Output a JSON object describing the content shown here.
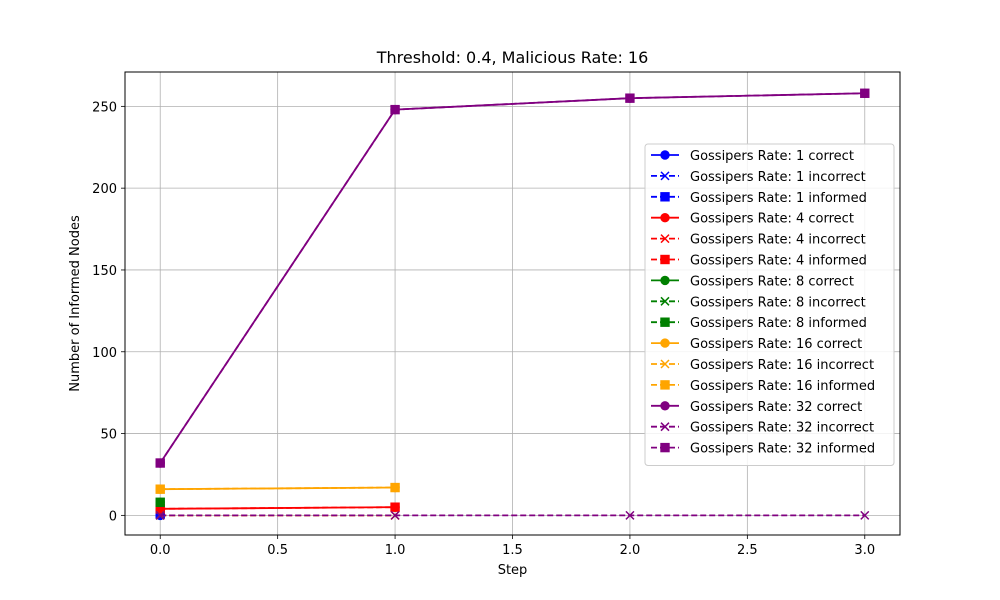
{
  "chart_data": {
    "type": "line",
    "title": "Threshold: 0.4, Malicious Rate: 16",
    "xlabel": "Step",
    "ylabel": "Number of Informed Nodes",
    "xlim": [
      -0.15,
      3.15
    ],
    "ylim": [
      -12,
      271
    ],
    "xticks": [
      "0.0",
      "0.5",
      "1.0",
      "1.5",
      "2.0",
      "2.5",
      "3.0"
    ],
    "yticks": [
      "0",
      "50",
      "100",
      "150",
      "200",
      "250"
    ],
    "grid": true,
    "legend_position": "right",
    "series": [
      {
        "name": "Gossipers Rate: 1 correct",
        "color": "#0000ff",
        "marker": "circle",
        "dash": "solid",
        "x": [
          0
        ],
        "y": [
          0
        ]
      },
      {
        "name": "Gossipers Rate: 1 incorrect",
        "color": "#0000ff",
        "marker": "x",
        "dash": "dashed",
        "x": [
          0
        ],
        "y": [
          0
        ]
      },
      {
        "name": "Gossipers Rate: 1 informed",
        "color": "#0000ff",
        "marker": "square",
        "dash": "dashed",
        "x": [
          0
        ],
        "y": [
          1
        ]
      },
      {
        "name": "Gossipers Rate: 4 correct",
        "color": "#ff0000",
        "marker": "circle",
        "dash": "solid",
        "x": [
          0,
          1
        ],
        "y": [
          4,
          5
        ]
      },
      {
        "name": "Gossipers Rate: 4 incorrect",
        "color": "#ff0000",
        "marker": "x",
        "dash": "dashed",
        "x": [
          0,
          1
        ],
        "y": [
          0,
          0
        ]
      },
      {
        "name": "Gossipers Rate: 4 informed",
        "color": "#ff0000",
        "marker": "square",
        "dash": "dashed",
        "x": [
          0,
          1
        ],
        "y": [
          4,
          5
        ]
      },
      {
        "name": "Gossipers Rate: 8 correct",
        "color": "#008000",
        "marker": "circle",
        "dash": "solid",
        "x": [
          0
        ],
        "y": [
          8
        ]
      },
      {
        "name": "Gossipers Rate: 8 incorrect",
        "color": "#008000",
        "marker": "x",
        "dash": "dashed",
        "x": [
          0
        ],
        "y": [
          0
        ]
      },
      {
        "name": "Gossipers Rate: 8 informed",
        "color": "#008000",
        "marker": "square",
        "dash": "dashed",
        "x": [
          0
        ],
        "y": [
          8
        ]
      },
      {
        "name": "Gossipers Rate: 16 correct",
        "color": "#ffa500",
        "marker": "circle",
        "dash": "solid",
        "x": [
          0,
          1
        ],
        "y": [
          16,
          17
        ]
      },
      {
        "name": "Gossipers Rate: 16 incorrect",
        "color": "#ffa500",
        "marker": "x",
        "dash": "dashed",
        "x": [
          0,
          1
        ],
        "y": [
          0,
          0
        ]
      },
      {
        "name": "Gossipers Rate: 16 informed",
        "color": "#ffa500",
        "marker": "square",
        "dash": "dashed",
        "x": [
          0,
          1
        ],
        "y": [
          16,
          17
        ]
      },
      {
        "name": "Gossipers Rate: 32 correct",
        "color": "#800080",
        "marker": "circle",
        "dash": "solid",
        "x": [
          0,
          1,
          2,
          3
        ],
        "y": [
          32,
          248,
          255,
          258
        ]
      },
      {
        "name": "Gossipers Rate: 32 incorrect",
        "color": "#800080",
        "marker": "x",
        "dash": "dashed",
        "x": [
          0,
          1,
          2,
          3
        ],
        "y": [
          0,
          0,
          0,
          0
        ]
      },
      {
        "name": "Gossipers Rate: 32 informed",
        "color": "#800080",
        "marker": "square",
        "dash": "dashed",
        "x": [
          0,
          1,
          2,
          3
        ],
        "y": [
          32,
          248,
          255,
          258
        ]
      }
    ]
  }
}
